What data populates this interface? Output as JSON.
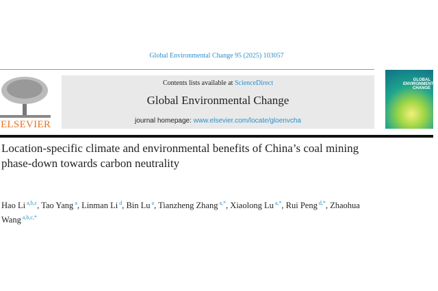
{
  "header": {
    "citation": "Global Environmental Change 95 (2025) 103057",
    "contents_prefix": "Contents lists available at ",
    "contents_link": "ScienceDirect",
    "journal_name": "Global Environmental Change",
    "homepage_prefix": "journal homepage: ",
    "homepage_link": "www.elsevier.com/locate/gloenvcha",
    "publisher_logo": "ELSEVIER",
    "cover_text": "GLOBAL ENVIRONMENTAL CHANGE",
    "colors": {
      "link": "#2a8fc9",
      "elsevier": "#e9711c"
    }
  },
  "article": {
    "title": "Location-specific climate and environmental benefits of China’s coal mining phase-down towards carbon neutrality",
    "authors": [
      {
        "name": "Hao Li",
        "aff": "a,b,c",
        "sep": ", "
      },
      {
        "name": "Tao Yang",
        "aff": "a",
        "sep": ", "
      },
      {
        "name": "Linman Li",
        "aff": "d",
        "sep": ", "
      },
      {
        "name": "Bin Lu",
        "aff": "a",
        "sep": ", "
      },
      {
        "name": "Tianzheng Zhang",
        "aff": "a,*",
        "sep": ", "
      },
      {
        "name": "Xiaolong Lu",
        "aff": "a,*",
        "sep": ", "
      },
      {
        "name": "Rui Peng",
        "aff": "d,*",
        "sep": ","
      },
      {
        "name": "Zhaohua Wang",
        "aff": "a,b,c,*",
        "sep": ""
      }
    ]
  }
}
